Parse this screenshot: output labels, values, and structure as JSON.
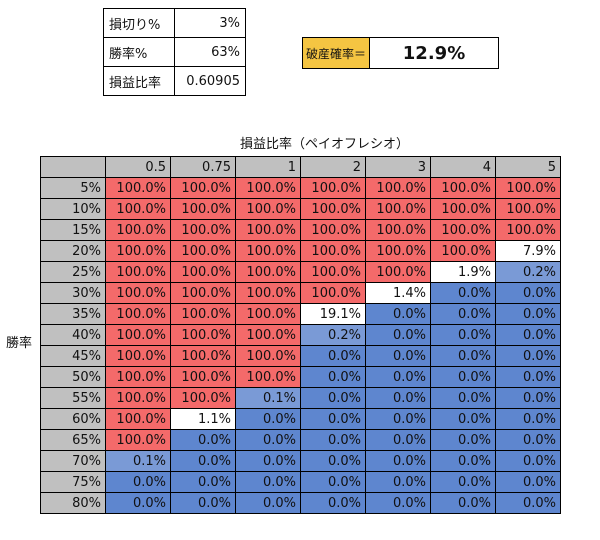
{
  "params": {
    "stop_loss_label": "損切り%",
    "stop_loss_value": "3%",
    "win_rate_label": "勝率%",
    "win_rate_value": "63%",
    "pl_ratio_label": "損益比率",
    "pl_ratio_value": "0.60905"
  },
  "ruin": {
    "label": "破産確率＝",
    "value": "12.9%"
  },
  "table": {
    "col_axis_title": "損益比率（ペイオフレシオ）",
    "row_axis_title": "勝率",
    "columns": [
      "0.5",
      "0.75",
      "1",
      "2",
      "3",
      "4",
      "5"
    ],
    "rows": [
      {
        "label": "5%",
        "cells": [
          "100.0%",
          "100.0%",
          "100.0%",
          "100.0%",
          "100.0%",
          "100.0%",
          "100.0%"
        ]
      },
      {
        "label": "10%",
        "cells": [
          "100.0%",
          "100.0%",
          "100.0%",
          "100.0%",
          "100.0%",
          "100.0%",
          "100.0%"
        ]
      },
      {
        "label": "15%",
        "cells": [
          "100.0%",
          "100.0%",
          "100.0%",
          "100.0%",
          "100.0%",
          "100.0%",
          "100.0%"
        ]
      },
      {
        "label": "20%",
        "cells": [
          "100.0%",
          "100.0%",
          "100.0%",
          "100.0%",
          "100.0%",
          "100.0%",
          "7.9%"
        ]
      },
      {
        "label": "25%",
        "cells": [
          "100.0%",
          "100.0%",
          "100.0%",
          "100.0%",
          "100.0%",
          "1.9%",
          "0.2%"
        ]
      },
      {
        "label": "30%",
        "cells": [
          "100.0%",
          "100.0%",
          "100.0%",
          "100.0%",
          "1.4%",
          "0.0%",
          "0.0%"
        ]
      },
      {
        "label": "35%",
        "cells": [
          "100.0%",
          "100.0%",
          "100.0%",
          "19.1%",
          "0.0%",
          "0.0%",
          "0.0%"
        ]
      },
      {
        "label": "40%",
        "cells": [
          "100.0%",
          "100.0%",
          "100.0%",
          "0.2%",
          "0.0%",
          "0.0%",
          "0.0%"
        ]
      },
      {
        "label": "45%",
        "cells": [
          "100.0%",
          "100.0%",
          "100.0%",
          "0.0%",
          "0.0%",
          "0.0%",
          "0.0%"
        ]
      },
      {
        "label": "50%",
        "cells": [
          "100.0%",
          "100.0%",
          "100.0%",
          "0.0%",
          "0.0%",
          "0.0%",
          "0.0%"
        ]
      },
      {
        "label": "55%",
        "cells": [
          "100.0%",
          "100.0%",
          "0.1%",
          "0.0%",
          "0.0%",
          "0.0%",
          "0.0%"
        ]
      },
      {
        "label": "60%",
        "cells": [
          "100.0%",
          "1.1%",
          "0.0%",
          "0.0%",
          "0.0%",
          "0.0%",
          "0.0%"
        ]
      },
      {
        "label": "65%",
        "cells": [
          "100.0%",
          "0.0%",
          "0.0%",
          "0.0%",
          "0.0%",
          "0.0%",
          "0.0%"
        ]
      },
      {
        "label": "70%",
        "cells": [
          "0.1%",
          "0.0%",
          "0.0%",
          "0.0%",
          "0.0%",
          "0.0%",
          "0.0%"
        ]
      },
      {
        "label": "75%",
        "cells": [
          "0.0%",
          "0.0%",
          "0.0%",
          "0.0%",
          "0.0%",
          "0.0%",
          "0.0%"
        ]
      },
      {
        "label": "80%",
        "cells": [
          "0.0%",
          "0.0%",
          "0.0%",
          "0.0%",
          "0.0%",
          "0.0%",
          "0.0%"
        ]
      }
    ]
  },
  "colors": {
    "high": "#f46a6a",
    "mid": "#fbe3e3",
    "low": "#5e86cf",
    "header_fill": "#c0c0c0",
    "ruin_label_fill": "#f5c542"
  }
}
